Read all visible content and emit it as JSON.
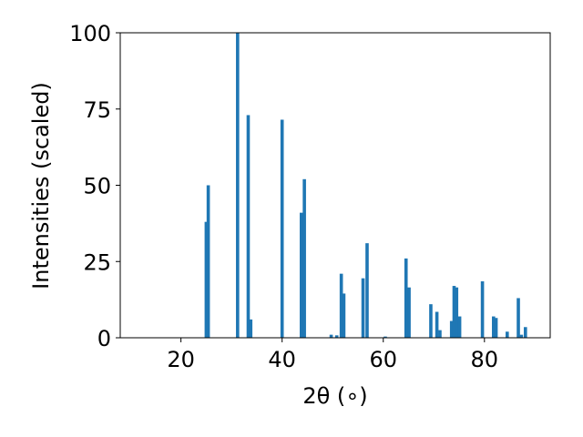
{
  "chart_data": {
    "type": "bar",
    "xlabel": "2θ (∘)",
    "ylabel": "Intensities (scaled)",
    "xlim": [
      8,
      93
    ],
    "ylim": [
      0,
      100
    ],
    "xticks": [
      20,
      40,
      60,
      80
    ],
    "yticks": [
      0,
      25,
      50,
      75,
      100
    ],
    "bar_color": "#1f77b4",
    "bars": [
      {
        "x": 25.0,
        "y": 38
      },
      {
        "x": 25.4,
        "y": 50
      },
      {
        "x": 31.2,
        "y": 100
      },
      {
        "x": 33.3,
        "y": 73
      },
      {
        "x": 33.8,
        "y": 6
      },
      {
        "x": 40.0,
        "y": 71.5
      },
      {
        "x": 43.8,
        "y": 41
      },
      {
        "x": 44.4,
        "y": 52
      },
      {
        "x": 49.7,
        "y": 1
      },
      {
        "x": 50.8,
        "y": 0.8
      },
      {
        "x": 51.7,
        "y": 21
      },
      {
        "x": 52.2,
        "y": 14.5
      },
      {
        "x": 56.0,
        "y": 19.5
      },
      {
        "x": 56.8,
        "y": 31
      },
      {
        "x": 60.4,
        "y": 0.4
      },
      {
        "x": 64.5,
        "y": 26
      },
      {
        "x": 65.1,
        "y": 16.5
      },
      {
        "x": 69.4,
        "y": 11
      },
      {
        "x": 70.6,
        "y": 8.5
      },
      {
        "x": 71.2,
        "y": 2.5
      },
      {
        "x": 73.5,
        "y": 5.5
      },
      {
        "x": 74.0,
        "y": 17
      },
      {
        "x": 74.5,
        "y": 16.5
      },
      {
        "x": 75.1,
        "y": 7
      },
      {
        "x": 79.6,
        "y": 18.5
      },
      {
        "x": 81.8,
        "y": 7
      },
      {
        "x": 82.3,
        "y": 6.5
      },
      {
        "x": 84.5,
        "y": 2
      },
      {
        "x": 86.7,
        "y": 13
      },
      {
        "x": 87.3,
        "y": 1
      },
      {
        "x": 88.1,
        "y": 3.5
      }
    ]
  }
}
